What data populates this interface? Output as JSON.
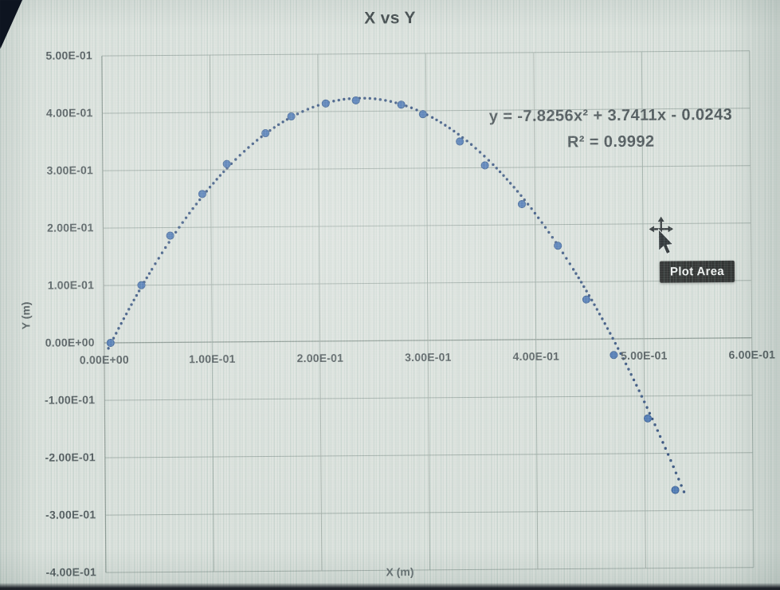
{
  "chart": {
    "title": "X vs Y",
    "x_axis_title": "X (m)",
    "y_axis_title": "Y (m)",
    "equation_line1": "y = -7.8256x² + 3.7411x - 0.0243",
    "equation_line2": "R² = 0.9992"
  },
  "tooltip": {
    "text": "Plot Area"
  },
  "colors": {
    "point_fill": "#4470b2",
    "point_stroke": "#30568f",
    "trendline": "#2b4778",
    "gridline": "#9aa59f",
    "axis_line": "#7e8a84",
    "tooltip_bg": "#181818",
    "text": "#474e52"
  },
  "chart_data": {
    "type": "scatter",
    "title": "X vs Y",
    "xlabel": "X (m)",
    "ylabel": "Y (m)",
    "xlim": [
      0.0,
      0.6
    ],
    "ylim": [
      -0.4,
      0.5
    ],
    "grid": true,
    "x_ticks": [
      {
        "value": 0.0,
        "label": "0.00E+00"
      },
      {
        "value": 0.1,
        "label": "1.00E-01"
      },
      {
        "value": 0.2,
        "label": "2.00E-01"
      },
      {
        "value": 0.3,
        "label": "3.00E-01"
      },
      {
        "value": 0.4,
        "label": "4.00E-01"
      },
      {
        "value": 0.5,
        "label": "5.00E-01"
      },
      {
        "value": 0.6,
        "label": "6.00E-01"
      }
    ],
    "y_ticks": [
      {
        "value": 0.5,
        "label": "5.00E-01"
      },
      {
        "value": 0.4,
        "label": "4.00E-01"
      },
      {
        "value": 0.3,
        "label": "3.00E-01"
      },
      {
        "value": 0.2,
        "label": "2.00E-01"
      },
      {
        "value": 0.1,
        "label": "1.00E-01"
      },
      {
        "value": 0.0,
        "label": "0.00E+00"
      },
      {
        "value": -0.1,
        "label": "-1.00E-01"
      },
      {
        "value": -0.2,
        "label": "-2.00E-01"
      },
      {
        "value": -0.3,
        "label": "-3.00E-01"
      },
      {
        "value": -0.4,
        "label": "-4.00E-01"
      }
    ],
    "series": [
      {
        "points": [
          [
            0.006,
            0.0
          ],
          [
            0.035,
            0.1
          ],
          [
            0.062,
            0.186
          ],
          [
            0.092,
            0.258
          ],
          [
            0.115,
            0.31
          ],
          [
            0.151,
            0.363
          ],
          [
            0.175,
            0.392
          ],
          [
            0.207,
            0.414
          ],
          [
            0.235,
            0.419
          ],
          [
            0.277,
            0.411
          ],
          [
            0.297,
            0.394
          ],
          [
            0.331,
            0.346
          ],
          [
            0.354,
            0.304
          ],
          [
            0.388,
            0.236
          ],
          [
            0.421,
            0.163
          ],
          [
            0.447,
            0.069
          ],
          [
            0.472,
            -0.028
          ],
          [
            0.503,
            -0.139
          ],
          [
            0.528,
            -0.264
          ]
        ]
      }
    ],
    "trendline": {
      "type": "polynomial",
      "degree": 2,
      "a": -7.8256,
      "b": 3.7411,
      "c": -0.0243,
      "equation": "y = -7.8256x² + 3.7411x - 0.0243",
      "r_squared": "R² = 0.9992",
      "x_range": [
        0.004,
        0.538
      ],
      "style": "dotted"
    },
    "annotations": [
      "y = -7.8256x² + 3.7411x - 0.0243",
      "R² = 0.9992"
    ],
    "legend": false
  }
}
